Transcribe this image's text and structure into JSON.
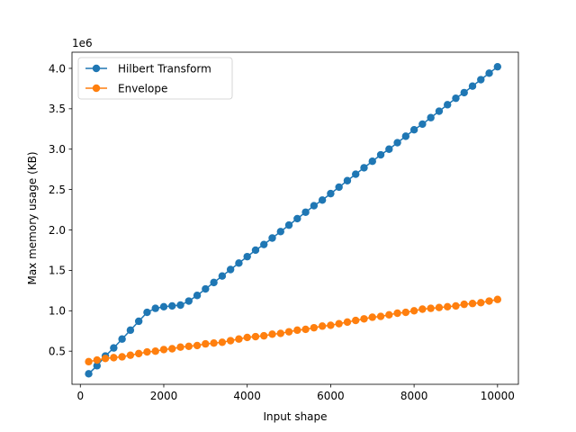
{
  "chart_data": {
    "type": "line",
    "title": "",
    "xlabel": "Input shape",
    "ylabel": "Max memory usage (KB)",
    "y_offset_text": "1e6",
    "xlim": [
      -200,
      10500
    ],
    "ylim": [
      0.09,
      4.2
    ],
    "x_scale": "linear",
    "y_scale": "linear",
    "grid": false,
    "legend_placement": "top-left",
    "x_ticks": [
      0,
      2000,
      4000,
      6000,
      8000,
      10000
    ],
    "x_tick_labels": [
      "0",
      "2000",
      "4000",
      "6000",
      "8000",
      "10000"
    ],
    "y_ticks": [
      0.5,
      1.0,
      1.5,
      2.0,
      2.5,
      3.0,
      3.5,
      4.0
    ],
    "y_tick_labels": [
      "0.5",
      "1.0",
      "1.5",
      "2.0",
      "2.5",
      "3.0",
      "3.5",
      "4.0"
    ],
    "x": [
      200,
      400,
      600,
      800,
      1000,
      1200,
      1400,
      1600,
      1800,
      2000,
      2200,
      2400,
      2600,
      2800,
      3000,
      3200,
      3400,
      3600,
      3800,
      4000,
      4200,
      4400,
      4600,
      4800,
      5000,
      5200,
      5400,
      5600,
      5800,
      6000,
      6200,
      6400,
      6600,
      6800,
      7000,
      7200,
      7400,
      7600,
      7800,
      8000,
      8200,
      8400,
      8600,
      8800,
      9000,
      9200,
      9400,
      9600,
      9800,
      10000
    ],
    "series": [
      {
        "name": "Hilbert Transform",
        "color": "#1f77b4",
        "values": [
          0.22,
          0.32,
          0.44,
          0.54,
          0.65,
          0.76,
          0.87,
          0.98,
          1.03,
          1.05,
          1.06,
          1.07,
          1.12,
          1.19,
          1.27,
          1.35,
          1.43,
          1.51,
          1.59,
          1.67,
          1.75,
          1.82,
          1.9,
          1.98,
          2.06,
          2.14,
          2.22,
          2.3,
          2.37,
          2.45,
          2.53,
          2.61,
          2.69,
          2.77,
          2.85,
          2.93,
          3.0,
          3.08,
          3.16,
          3.24,
          3.31,
          3.39,
          3.47,
          3.55,
          3.63,
          3.7,
          3.78,
          3.86,
          3.94,
          4.02
        ]
      },
      {
        "name": "Envelope",
        "color": "#ff7f0e",
        "values": [
          0.37,
          0.39,
          0.41,
          0.42,
          0.43,
          0.45,
          0.47,
          0.49,
          0.5,
          0.52,
          0.53,
          0.55,
          0.56,
          0.57,
          0.59,
          0.6,
          0.61,
          0.63,
          0.65,
          0.67,
          0.68,
          0.69,
          0.71,
          0.72,
          0.74,
          0.76,
          0.77,
          0.79,
          0.81,
          0.82,
          0.84,
          0.86,
          0.88,
          0.9,
          0.92,
          0.93,
          0.95,
          0.97,
          0.98,
          1.0,
          1.02,
          1.03,
          1.04,
          1.05,
          1.06,
          1.08,
          1.09,
          1.1,
          1.12,
          1.14
        ]
      }
    ]
  }
}
